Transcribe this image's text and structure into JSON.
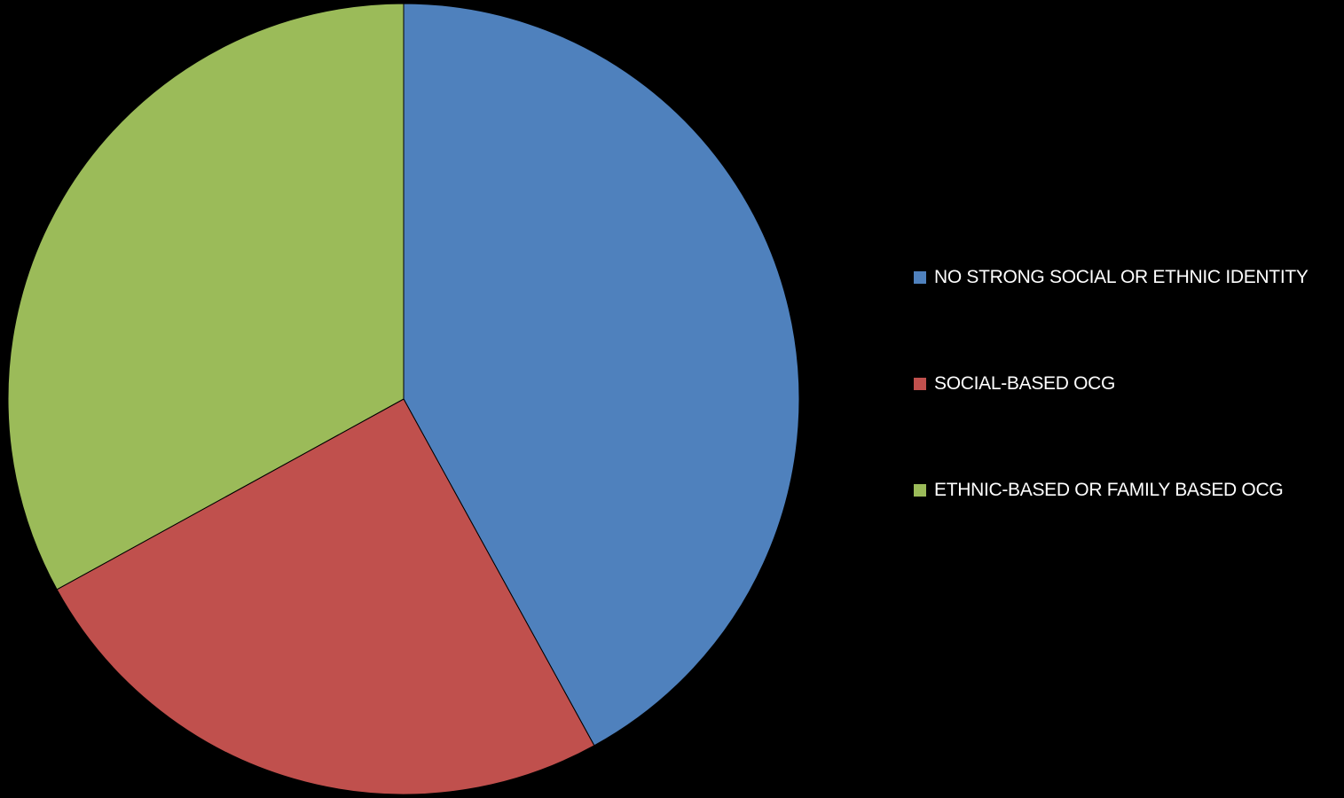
{
  "chart_data": {
    "type": "pie",
    "title": "",
    "slices": [
      {
        "label": "NO STRONG SOCIAL OR ETHNIC IDENTITY",
        "value": 42,
        "color": "#4F81BD"
      },
      {
        "label": "SOCIAL-BASED OCG",
        "value": 25,
        "color": "#C0504D"
      },
      {
        "label": "ETHNIC-BASED OR FAMILY BASED OCG",
        "value": 33,
        "color": "#9BBB59"
      }
    ],
    "legend_position": "right",
    "background": "#000000"
  }
}
